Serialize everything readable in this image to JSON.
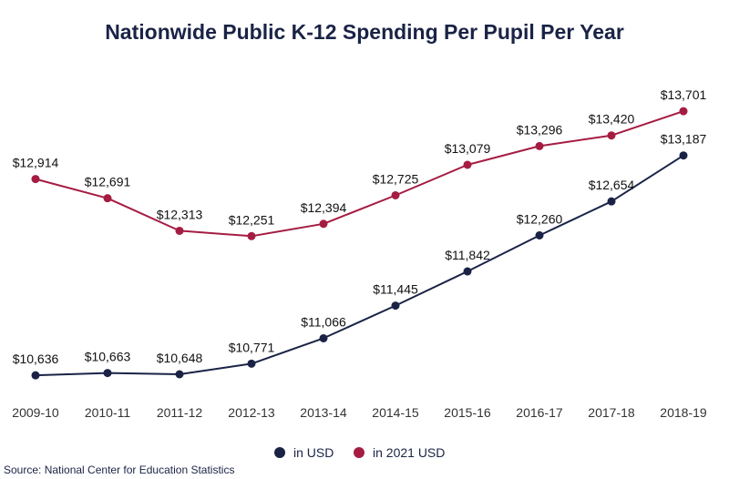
{
  "chart_data": {
    "type": "line",
    "title": "Nationwide Public K-12 Spending Per Pupil Per Year",
    "categories": [
      "2009-10",
      "2010-11",
      "2011-12",
      "2012-13",
      "2013-14",
      "2014-15",
      "2015-16",
      "2016-17",
      "2017-18",
      "2018-19"
    ],
    "series": [
      {
        "name": "in USD",
        "color": "#1a2346",
        "values": [
          10636,
          10663,
          10648,
          10771,
          11066,
          11445,
          11842,
          12260,
          12654,
          13187
        ],
        "labels": [
          "$10,636",
          "$10,663",
          "$10,648",
          "$10,771",
          "$11,066",
          "$11,445",
          "$11,842",
          "$12,260",
          "$12,654",
          "$13,187"
        ]
      },
      {
        "name": "in 2021 USD",
        "color": "#a51c42",
        "values": [
          12914,
          12691,
          12313,
          12251,
          12394,
          12725,
          13079,
          13296,
          13420,
          13701
        ],
        "labels": [
          "$12,914",
          "$12,691",
          "$12,313",
          "$12,251",
          "$12,394",
          "$12,725",
          "$13,079",
          "$13,296",
          "$13,420",
          "$13,701"
        ]
      }
    ],
    "ylim": [
      10500,
      13850
    ],
    "grid": false,
    "legend": "bottom-center"
  },
  "source": "Source: National Center for Education Statistics"
}
